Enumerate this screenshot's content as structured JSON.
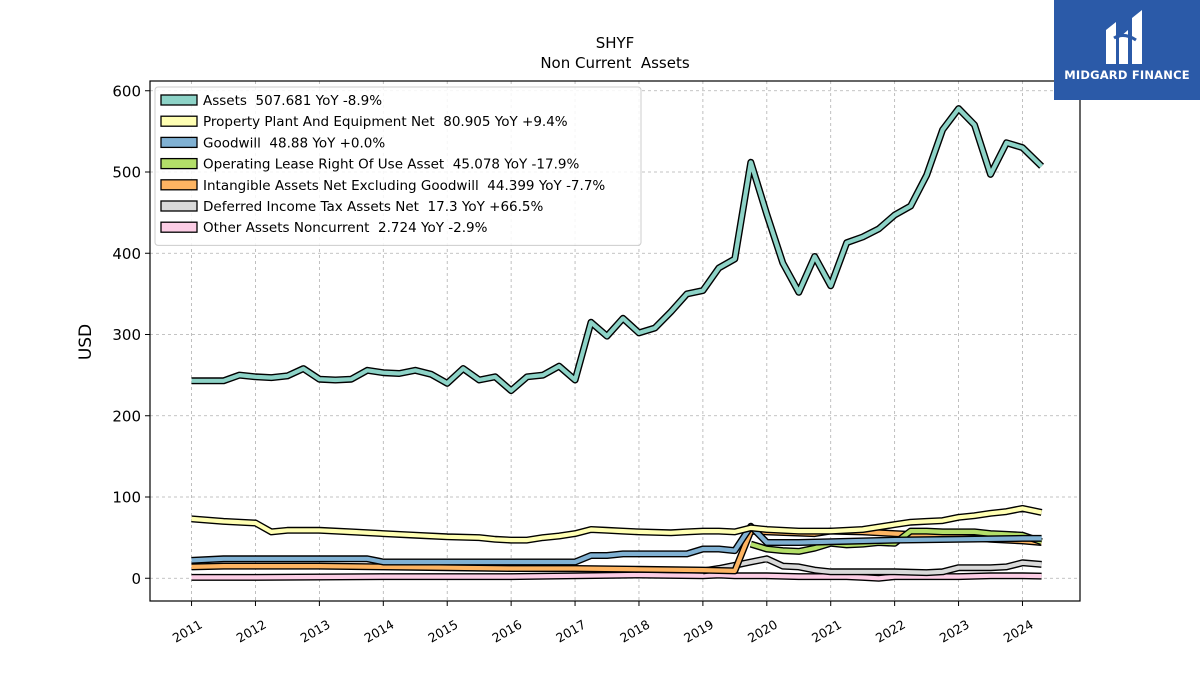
{
  "chart_data": {
    "type": "line",
    "title": "SHYF",
    "subtitle": "Non Current  Assets",
    "ylabel": "USD",
    "xlabel": "",
    "ylim": [
      -28,
      612
    ],
    "xlim": [
      2010.35,
      2024.9
    ],
    "grid": true,
    "legend_position": "top-left",
    "yticks": [
      0,
      100,
      200,
      300,
      400,
      500,
      600
    ],
    "xtick_labels": [
      "2011",
      "2012",
      "2013",
      "2014",
      "2015",
      "2016",
      "2017",
      "2018",
      "2019",
      "2020",
      "2021",
      "2022",
      "2023",
      "2024"
    ],
    "series": [
      {
        "name": "Assets",
        "legend": "Assets  507.681 YoY -8.9%",
        "color": "#8dd3c7",
        "x": [
          2011.0,
          2011.25,
          2011.5,
          2011.75,
          2012.0,
          2012.25,
          2012.5,
          2012.75,
          2013.0,
          2013.25,
          2013.5,
          2013.75,
          2014.0,
          2014.25,
          2014.5,
          2014.75,
          2015.0,
          2015.25,
          2015.5,
          2015.75,
          2016.0,
          2016.25,
          2016.5,
          2016.75,
          2017.0,
          2017.25,
          2017.5,
          2017.75,
          2018.0,
          2018.25,
          2018.5,
          2018.75,
          2019.0,
          2019.25,
          2019.5,
          2019.75,
          2020.0,
          2020.25,
          2020.5,
          2020.75,
          2021.0,
          2021.25,
          2021.5,
          2021.75,
          2022.0,
          2022.25,
          2022.5,
          2022.75,
          2023.0,
          2023.25,
          2023.5,
          2023.75,
          2024.0,
          2024.3
        ],
        "values": [
          243,
          243,
          243,
          250,
          248,
          247,
          249,
          258,
          245,
          244,
          245,
          256,
          253,
          252,
          256,
          251,
          240,
          258,
          244,
          248,
          231,
          248,
          250,
          261,
          244,
          315,
          298,
          320,
          302,
          308,
          328,
          350,
          354,
          382,
          393,
          512,
          448,
          388,
          352,
          396,
          360,
          413,
          420,
          430,
          447,
          458,
          496,
          552,
          578,
          558,
          497,
          536,
          530,
          507
        ]
      },
      {
        "name": "Property Plant And Equipment Net",
        "legend": "Property Plant And Equipment Net  80.905 YoY +9.4%",
        "color": "#ffffb3",
        "x": [
          2011.0,
          2011.5,
          2012.0,
          2012.25,
          2012.5,
          2012.75,
          2013.0,
          2013.5,
          2014.0,
          2014.5,
          2015.0,
          2015.5,
          2015.75,
          2016.0,
          2016.25,
          2016.5,
          2016.75,
          2017.0,
          2017.25,
          2017.5,
          2017.75,
          2018.0,
          2018.5,
          2018.75,
          2019.0,
          2019.25,
          2019.5,
          2019.75,
          2020.0,
          2020.5,
          2021.0,
          2021.5,
          2022.0,
          2022.25,
          2022.5,
          2022.75,
          2023.0,
          2023.25,
          2023.5,
          2023.75,
          2024.0,
          2024.3
        ],
        "values": [
          73,
          70,
          68,
          57,
          59,
          59,
          59,
          57,
          55,
          53,
          51,
          50,
          48,
          47,
          47,
          50,
          52,
          55,
          60,
          59,
          58,
          57,
          56,
          57,
          58,
          58,
          57,
          62,
          60,
          58,
          58,
          60,
          66,
          69,
          70,
          71,
          75,
          77,
          80,
          82,
          86,
          81
        ]
      },
      {
        "name": "Goodwill",
        "legend": "Goodwill  48.88 YoY +0.0%",
        "color": "#80b1d3",
        "x": [
          2011.0,
          2011.5,
          2012.0,
          2013.0,
          2013.75,
          2014.0,
          2015.0,
          2016.0,
          2017.0,
          2017.25,
          2017.5,
          2017.75,
          2018.0,
          2018.5,
          2018.75,
          2019.0,
          2019.25,
          2019.5,
          2019.75,
          2020.0,
          2020.5,
          2021.0,
          2022.0,
          2023.0,
          2024.0,
          2024.3
        ],
        "values": [
          22,
          24,
          24,
          24,
          24,
          20,
          20,
          20,
          20,
          28,
          28,
          30,
          30,
          30,
          30,
          36,
          36,
          34,
          64,
          44,
          44,
          45,
          47,
          48,
          49,
          49
        ]
      },
      {
        "name": "Operating Lease Right Of Use Asset",
        "legend": "Operating Lease Right Of Use Asset  45.078 YoY -17.9%",
        "color": "#b3de69",
        "x": [
          2019.75,
          2020.0,
          2020.25,
          2020.5,
          2020.75,
          2021.0,
          2021.25,
          2021.5,
          2021.75,
          2022.0,
          2022.25,
          2022.5,
          2022.75,
          2023.0,
          2023.25,
          2023.5,
          2023.75,
          2024.0,
          2024.3
        ],
        "values": [
          42,
          36,
          34,
          33,
          37,
          43,
          41,
          42,
          44,
          43,
          58,
          58,
          57,
          57,
          57,
          55,
          54,
          53,
          45
        ]
      },
      {
        "name": "Intangible Assets Net Excluding Goodwill",
        "legend": "Intangible Assets Net Excluding Goodwill  44.399 YoY -7.7%",
        "color": "#fdb462",
        "x": [
          2011.0,
          2011.5,
          2012.0,
          2013.0,
          2014.0,
          2015.0,
          2016.0,
          2017.0,
          2018.0,
          2019.0,
          2019.5,
          2019.75,
          2020.0,
          2020.75,
          2021.0,
          2021.5,
          2022.0,
          2022.5,
          2023.0,
          2023.5,
          2024.0,
          2024.3
        ],
        "values": [
          14,
          15,
          15,
          15,
          14,
          13,
          12,
          12,
          11,
          10,
          9,
          58,
          57,
          55,
          58,
          57,
          55,
          53,
          51,
          48,
          46,
          44
        ]
      },
      {
        "name": "Deferred Income Tax Assets Net",
        "legend": "Deferred Income Tax Assets Net  17.3 YoY +66.5%",
        "color": "#d9d9d9",
        "x": [
          2019.0,
          2019.25,
          2019.5,
          2019.75,
          2020.0,
          2020.25,
          2020.5,
          2020.75,
          2021.0,
          2021.5,
          2022.0,
          2022.5,
          2022.75,
          2023.0,
          2023.5,
          2023.75,
          2024.0,
          2024.3
        ],
        "values": [
          9,
          12,
          16,
          20,
          24,
          15,
          14,
          10,
          8,
          8,
          8,
          7,
          8,
          13,
          13,
          14,
          19,
          17
        ]
      },
      {
        "name": "Other Assets Noncurrent",
        "legend": "Other Assets Noncurrent  2.724 YoY -2.9%",
        "color": "#fccde5",
        "x": [
          2011.0,
          2012.0,
          2013.0,
          2014.0,
          2015.0,
          2016.0,
          2017.0,
          2018.0,
          2019.0,
          2019.25,
          2019.5,
          2020.0,
          2020.5,
          2021.0,
          2021.25,
          2021.5,
          2021.75,
          2022.0,
          2022.5,
          2023.0,
          2023.5,
          2024.0,
          2024.3
        ],
        "values": [
          1,
          1,
          1.5,
          2,
          2,
          2,
          3,
          4,
          3,
          4,
          3,
          3,
          2,
          2,
          2,
          1,
          0,
          2,
          2,
          2,
          3,
          3,
          2.7
        ]
      }
    ]
  },
  "logo": {
    "text": "MIDGARD FINANCE",
    "icon": "midgard-logo-icon",
    "background": "#2b5aa8"
  }
}
